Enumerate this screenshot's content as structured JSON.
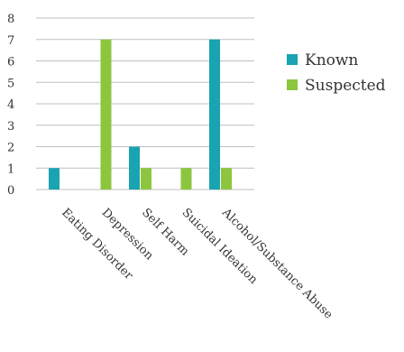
{
  "colors": {
    "known": "#1aa3b0",
    "suspected": "#8cc63f",
    "grid": "#bfbfbf"
  },
  "chart_data": {
    "type": "bar",
    "categories": [
      "Eating Disorder",
      "Depression",
      "Self Harm",
      "Suicidal Ideation",
      "Alcohol/Substance Abuse"
    ],
    "series": [
      {
        "name": "Known",
        "values": [
          1,
          0,
          2,
          0,
          7
        ]
      },
      {
        "name": "Suspected",
        "values": [
          0,
          7,
          1,
          1,
          1
        ]
      }
    ],
    "ylim": [
      0,
      8
    ],
    "yticks": [
      "0",
      "1",
      "2",
      "3",
      "4",
      "5",
      "6",
      "7",
      "8"
    ],
    "grid": true,
    "legend_position": "right"
  }
}
